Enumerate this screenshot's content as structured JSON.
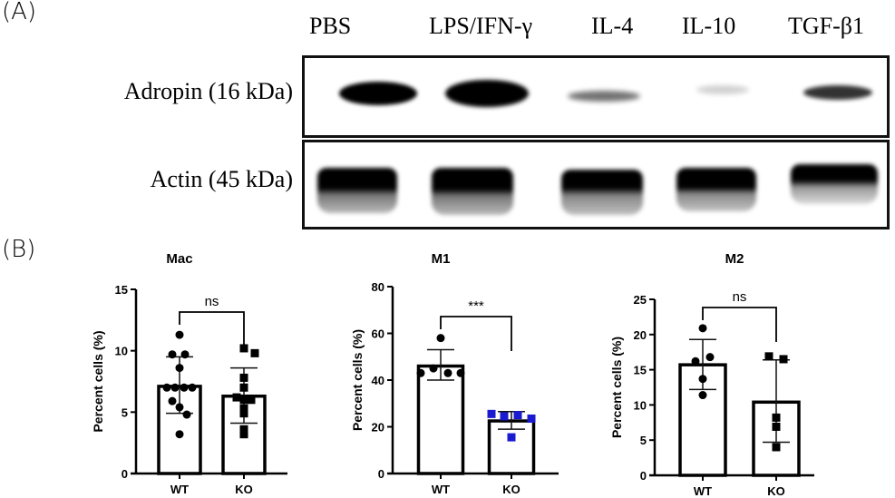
{
  "panel_a": {
    "label": "(A)",
    "lanes": [
      "PBS",
      "LPS/IFN-γ",
      "IL-4",
      "IL-10",
      "TGF-β1"
    ],
    "rows": [
      {
        "label": "Adropin (16 kDa)",
        "band_intensity": [
          1.0,
          1.0,
          0.35,
          0.15,
          0.7
        ]
      },
      {
        "label": "Actin (45 kDa)",
        "band_intensity": [
          1.0,
          1.0,
          1.0,
          1.0,
          0.9
        ]
      }
    ]
  },
  "panel_b": {
    "label": "(B)"
  },
  "chart_data": [
    {
      "type": "bar",
      "title": "Mac",
      "categories": [
        "WT",
        "KO"
      ],
      "ylabel": "Percent cells (%)",
      "xlabel": "",
      "ylim": [
        0,
        15
      ],
      "yticks": [
        0,
        5,
        10,
        15
      ],
      "series": [
        {
          "name": "mean",
          "values": [
            7.1,
            6.3
          ]
        },
        {
          "name": "sd_low",
          "values": [
            4.9,
            4.1
          ]
        },
        {
          "name": "sd_high",
          "values": [
            9.5,
            8.6
          ]
        }
      ],
      "points": {
        "WT": [
          11.3,
          9.7,
          9.7,
          8.6,
          7.0,
          7.0,
          7.0,
          7.0,
          5.9,
          5.4,
          4.8,
          3.2
        ],
        "KO": [
          10.2,
          9.8,
          7.8,
          7.0,
          6.2,
          6.0,
          6.0,
          5.3,
          4.9,
          3.6,
          3.2
        ]
      },
      "markers": {
        "WT": "circle",
        "KO": "square"
      },
      "marker_colors": {
        "WT": "#000000",
        "KO": "#000000"
      },
      "significance": "ns",
      "grid": false
    },
    {
      "type": "bar",
      "title": "M1",
      "categories": [
        "WT",
        "KO"
      ],
      "ylabel": "Percent cells (%)",
      "xlabel": "",
      "ylim": [
        0,
        80
      ],
      "yticks": [
        0,
        20,
        40,
        60,
        80
      ],
      "series": [
        {
          "name": "mean",
          "values": [
            46,
            22.5
          ]
        },
        {
          "name": "sd_low",
          "values": [
            40,
            19
          ]
        },
        {
          "name": "sd_high",
          "values": [
            53,
            26.5
          ]
        }
      ],
      "points": {
        "WT": [
          58,
          45,
          43,
          43,
          43
        ],
        "KO": [
          25.5,
          24.5,
          25,
          23.5,
          15.5
        ]
      },
      "markers": {
        "WT": "circle",
        "KO": "square"
      },
      "marker_colors": {
        "WT": "#000000",
        "KO": "#1a1ad0"
      },
      "significance": "***",
      "grid": false
    },
    {
      "type": "bar",
      "title": "M2",
      "categories": [
        "WT",
        "KO"
      ],
      "ylabel": "Percent cells (%)",
      "xlabel": "",
      "ylim": [
        0,
        25
      ],
      "yticks": [
        0,
        5,
        10,
        15,
        20,
        25
      ],
      "series": [
        {
          "name": "mean",
          "values": [
            15.7,
            10.4
          ]
        },
        {
          "name": "sd_low",
          "values": [
            12.2,
            4.7
          ]
        },
        {
          "name": "sd_high",
          "values": [
            19.3,
            16.4
          ]
        }
      ],
      "points": {
        "WT": [
          20.9,
          16.8,
          16.2,
          13.7,
          11.4
        ],
        "KO": [
          16.9,
          16.5,
          8.2,
          6.9,
          4.0
        ]
      },
      "markers": {
        "WT": "circle",
        "KO": "square"
      },
      "marker_colors": {
        "WT": "#000000",
        "KO": "#000000"
      },
      "significance": "ns",
      "grid": false
    }
  ]
}
